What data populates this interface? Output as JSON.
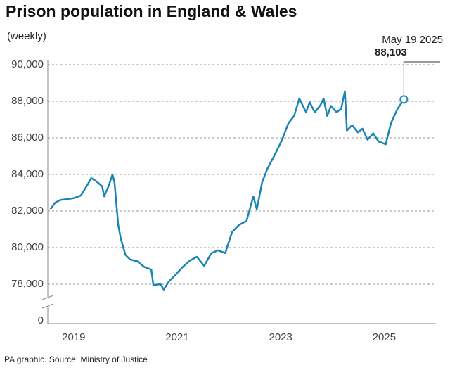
{
  "chart_data": {
    "type": "line",
    "title": "Prison population in England & Wales",
    "subtitle": "(weekly)",
    "source": "PA graphic. Source: Ministry of Justice",
    "annotation": {
      "date": "May 19 2025",
      "label": "88,103"
    },
    "ylim": [
      0,
      90000
    ],
    "y_break": [
      0,
      76000
    ],
    "yticks": [
      0,
      {
        "value": 78000,
        "label": "78,000"
      },
      {
        "value": 80000,
        "label": "80,000"
      },
      {
        "value": 82000,
        "label": "82,000"
      },
      {
        "value": 84000,
        "label": "84,000"
      },
      {
        "value": 86000,
        "label": "86,000"
      },
      {
        "value": 88000,
        "label": "88,000"
      },
      {
        "value": 90000,
        "label": "90,000"
      }
    ],
    "xlim": [
      2018.5,
      2026
    ],
    "xticks": [
      2019,
      2021,
      2023,
      2025
    ],
    "grid": true,
    "series": [
      {
        "color": "#1a84b3",
        "x": [
          2018.55,
          2018.64,
          2018.74,
          2018.87,
          2019.0,
          2019.14,
          2019.28,
          2019.34,
          2019.45,
          2019.55,
          2019.59,
          2019.68,
          2019.75,
          2019.79,
          2019.86,
          2019.91,
          2020.0,
          2020.09,
          2020.23,
          2020.36,
          2020.5,
          2020.54,
          2020.68,
          2020.74,
          2020.84,
          2020.98,
          2021.11,
          2021.25,
          2021.38,
          2021.52,
          2021.66,
          2021.79,
          2021.93,
          2022.06,
          2022.2,
          2022.34,
          2022.47,
          2022.54,
          2022.64,
          2022.74,
          2022.88,
          2023.02,
          2023.15,
          2023.26,
          2023.36,
          2023.43,
          2023.49,
          2023.56,
          2023.66,
          2023.77,
          2023.83,
          2023.9,
          2023.97,
          2024.08,
          2024.17,
          2024.24,
          2024.28,
          2024.38,
          2024.49,
          2024.58,
          2024.68,
          2024.79,
          2024.89,
          2025.03,
          2025.13,
          2025.26,
          2025.38
        ],
        "values": [
          82100,
          82450,
          82600,
          82650,
          82700,
          82850,
          83500,
          83800,
          83600,
          83350,
          82800,
          83400,
          84000,
          83550,
          81250,
          80500,
          79600,
          79350,
          79250,
          78950,
          78800,
          77950,
          78000,
          77700,
          78150,
          78550,
          78950,
          79300,
          79500,
          79000,
          79700,
          79850,
          79700,
          80850,
          81250,
          81450,
          82800,
          82100,
          83550,
          84300,
          85050,
          85850,
          86800,
          87200,
          88150,
          87750,
          87400,
          87950,
          87400,
          87800,
          88150,
          87200,
          87750,
          87400,
          87600,
          88550,
          86400,
          86700,
          86300,
          86500,
          85900,
          86250,
          85800,
          85650,
          86800,
          87600,
          88103
        ]
      }
    ]
  }
}
